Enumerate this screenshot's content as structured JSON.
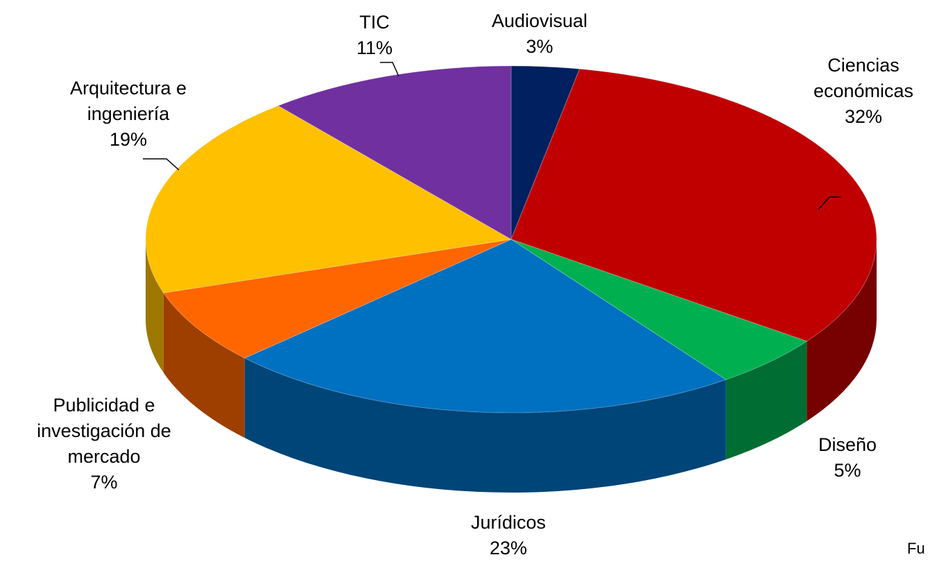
{
  "chart_data": {
    "type": "pie",
    "categories": [
      "Audiovisual",
      "Ciencias económicas",
      "Diseño",
      "Jurídicos",
      "Publicidad e investigación de mercado",
      "Arquitectura e ingeniería",
      "TIC"
    ],
    "values": [
      3,
      32,
      5,
      23,
      7,
      19,
      11
    ],
    "value_labels": [
      "3%",
      "32%",
      "5%",
      "23%",
      "7%",
      "19%",
      "11%"
    ],
    "colors": [
      "#002060",
      "#c00000",
      "#00b050",
      "#0070c0",
      "#ff6600",
      "#ffc000",
      "#7030a0"
    ],
    "source": "Fu"
  }
}
